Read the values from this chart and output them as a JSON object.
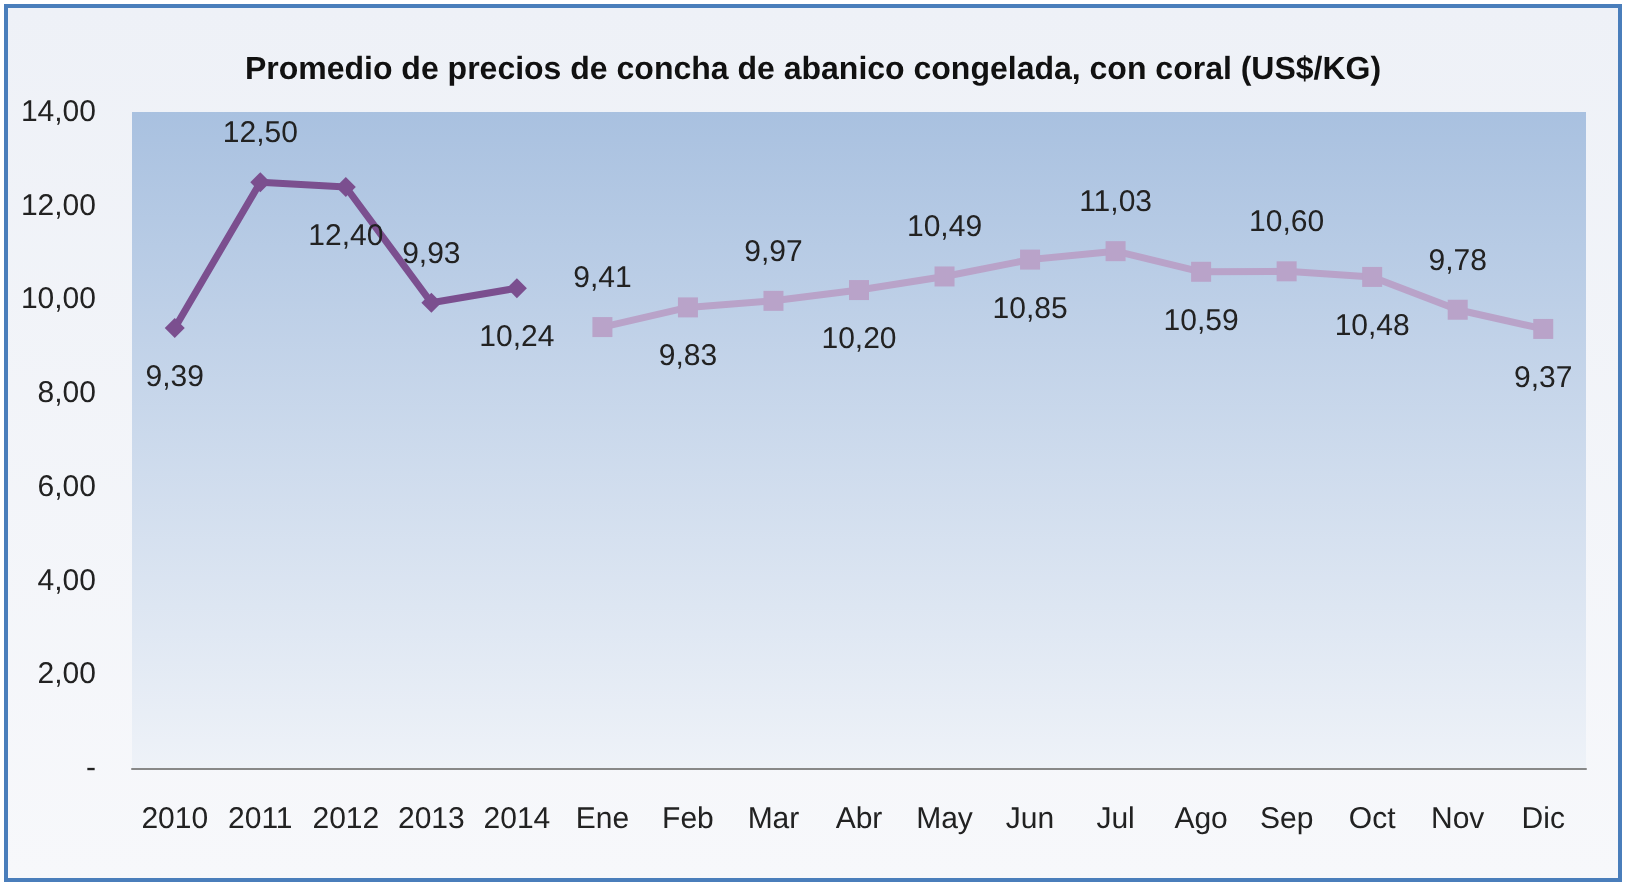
{
  "chart_data": {
    "type": "line",
    "title": "Promedio de precios de concha de abanico congelada, con coral (US$/KG)",
    "categories": [
      "2010",
      "2011",
      "2012",
      "2013",
      "2014",
      "Ene",
      "Feb",
      "Mar",
      "Abr",
      "May",
      "Jun",
      "Jul",
      "Ago",
      "Sep",
      "Oct",
      "Nov",
      "Dic"
    ],
    "series": [
      {
        "color": "#7b4f8f",
        "marker": "diamond",
        "values": [
          9.39,
          12.5,
          12.4,
          9.93,
          10.24,
          null,
          null,
          null,
          null,
          null,
          null,
          null,
          null,
          null,
          null,
          null,
          null
        ],
        "value_labels": [
          "9,39",
          "12,50",
          "12,40",
          "9,93",
          "10,24",
          null,
          null,
          null,
          null,
          null,
          null,
          null,
          null,
          null,
          null,
          null,
          null
        ]
      },
      {
        "color": "#b9a3c9",
        "marker": "square",
        "values": [
          null,
          null,
          null,
          null,
          null,
          9.41,
          9.83,
          9.97,
          10.2,
          10.49,
          10.85,
          11.03,
          10.59,
          10.6,
          10.48,
          9.78,
          9.37
        ],
        "value_labels": [
          null,
          null,
          null,
          null,
          null,
          "9,41",
          "9,83",
          "9,97",
          "10,20",
          "10,49",
          "10,85",
          "11,03",
          "10,59",
          "10,60",
          "10,48",
          "9,78",
          "9,37"
        ]
      }
    ],
    "ylim": [
      0,
      14
    ],
    "yticks": [
      {
        "value": 0,
        "label": "-"
      },
      {
        "value": 2,
        "label": "2,00"
      },
      {
        "value": 4,
        "label": "4,00"
      },
      {
        "value": 6,
        "label": "6,00"
      },
      {
        "value": 8,
        "label": "8,00"
      },
      {
        "value": 10,
        "label": "10,00"
      },
      {
        "value": 12,
        "label": "12,00"
      },
      {
        "value": 14,
        "label": "14,00"
      }
    ],
    "grid": false
  }
}
